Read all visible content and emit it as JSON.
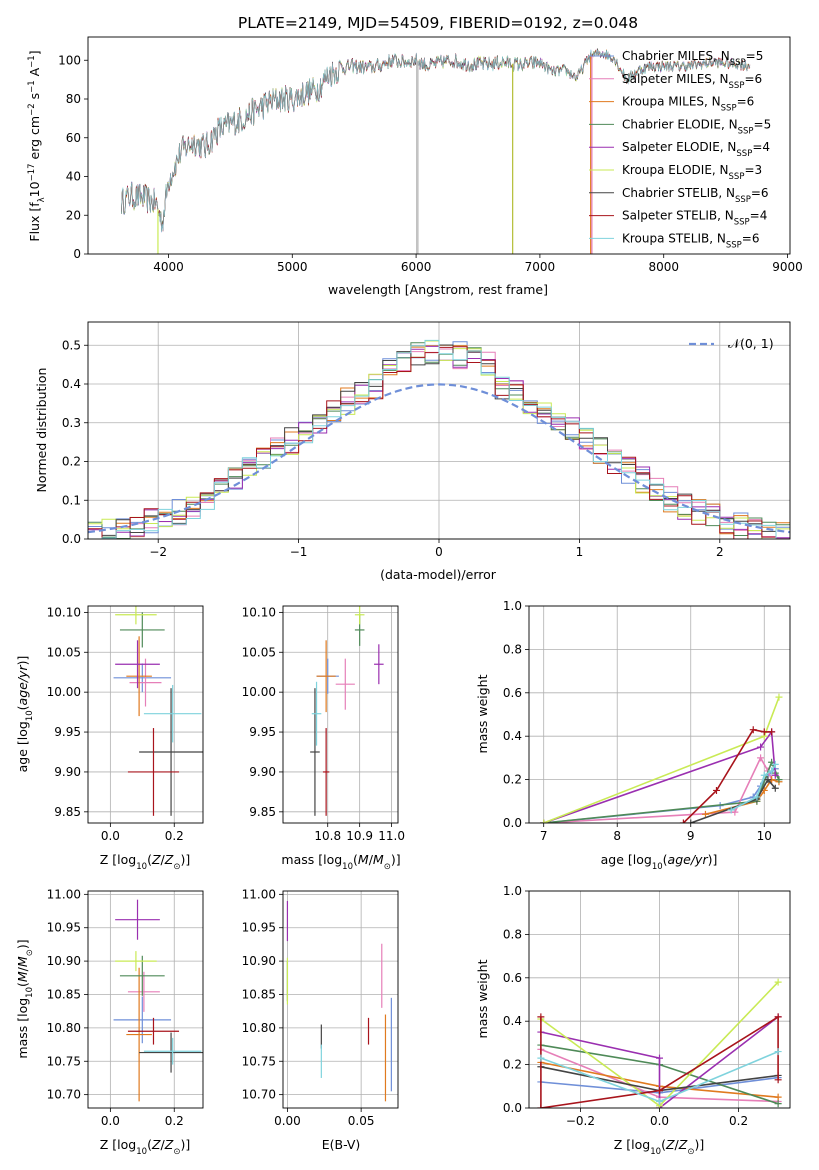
{
  "figure": {
    "title": "PLATE=2149, MJD=54509, FIBERID=0192, z=0.048"
  },
  "palette": {
    "Chabrier MILES": "#6f8fd8",
    "Salpeter MILES": "#e67fb8",
    "Kroupa MILES": "#e07a1f",
    "Chabrier ELODIE": "#4f8a58",
    "Salpeter ELODIE": "#9a2fb0",
    "Kroupa ELODIE": "#c9ea55",
    "Chabrier STELIB": "#444444",
    "Salpeter STELIB": "#a8141c",
    "Kroupa STELIB": "#7fd3dd"
  },
  "chart_data": [
    {
      "id": "spectrum",
      "type": "line",
      "title": "PLATE=2149, MJD=54509, FIBERID=0192, z=0.048",
      "xlabel": "wavelength [Angstrom, rest frame]",
      "ylabel": "Flux [f_λ 10^-17 erg cm^-2 s^-1 A^-1]",
      "xlim": [
        3350,
        9020
      ],
      "ylim": [
        0,
        112
      ],
      "xticks": [
        4000,
        5000,
        6000,
        7000,
        8000,
        9000
      ],
      "yticks": [
        0,
        20,
        40,
        60,
        80,
        100
      ],
      "legend_position": "right",
      "continuum_x": [
        3620,
        3700,
        3800,
        3900,
        3950,
        4000,
        4100,
        4200,
        4300,
        4400,
        4500,
        4600,
        4700,
        4800,
        4900,
        5000,
        5100,
        5200,
        5300,
        5400,
        5500,
        5600,
        5700,
        5800,
        5900,
        6000,
        6100,
        6200,
        6300,
        6400,
        6500,
        6600,
        6700,
        6800,
        6900,
        7000,
        7100,
        7200,
        7300,
        7400,
        7500,
        7600,
        7700,
        7800,
        7900,
        8000,
        8200,
        8400,
        8600,
        8700
      ],
      "continuum_y": [
        27,
        30,
        29,
        26,
        16,
        38,
        53,
        58,
        55,
        64,
        67,
        70,
        74,
        78,
        80,
        80,
        83,
        85,
        93,
        96,
        97,
        96,
        97,
        100,
        99,
        100,
        97,
        99,
        100,
        98,
        98,
        98,
        99,
        98,
        98,
        99,
        94,
        95,
        91,
        102,
        104,
        101,
        90,
        95,
        97,
        97,
        97,
        99,
        98,
        97
      ],
      "series": [
        {
          "name": "Chabrier MILES, N_SSP=5",
          "label_base": "Chabrier MILES, N",
          "label_sub": "SSP",
          "label_tail": "=5"
        },
        {
          "name": "Salpeter MILES, N_SSP=6",
          "label_base": "Salpeter MILES, N",
          "label_sub": "SSP",
          "label_tail": "=6"
        },
        {
          "name": "Kroupa MILES, N_SSP=6",
          "label_base": "Kroupa MILES, N",
          "label_sub": "SSP",
          "label_tail": "=6"
        },
        {
          "name": "Chabrier ELODIE, N_SSP=5",
          "label_base": "Chabrier ELODIE, N",
          "label_sub": "SSP",
          "label_tail": "=5"
        },
        {
          "name": "Salpeter ELODIE, N_SSP=4",
          "label_base": "Salpeter ELODIE, N",
          "label_sub": "SSP",
          "label_tail": "=4"
        },
        {
          "name": "Kroupa ELODIE, N_SSP=3",
          "label_base": "Kroupa ELODIE, N",
          "label_sub": "SSP",
          "label_tail": "=3"
        },
        {
          "name": "Chabrier STELIB, N_SSP=6",
          "label_base": "Chabrier STELIB, N",
          "label_sub": "SSP",
          "label_tail": "=6"
        },
        {
          "name": "Salpeter STELIB, N_SSP=4",
          "label_base": "Salpeter STELIB, N",
          "label_sub": "SSP",
          "label_tail": "=4"
        },
        {
          "name": "Kroupa STELIB, N_SSP=6",
          "label_base": "Kroupa STELIB, N",
          "label_sub": "SSP",
          "label_tail": "=6"
        }
      ]
    },
    {
      "id": "residuals",
      "type": "histogram",
      "xlabel": "(data-model)/error",
      "ylabel": "Normed distribution",
      "xlim": [
        -2.5,
        2.5
      ],
      "ylim": [
        0,
        0.56
      ],
      "xticks": [
        -2,
        -1,
        0,
        1,
        2
      ],
      "yticks": [
        0.0,
        0.1,
        0.2,
        0.3,
        0.4,
        0.5
      ],
      "bin_width": 0.1,
      "bin_start": -2.5,
      "legend": "𝒩(0, 1)",
      "reference_curve": "standard normal, dashed"
    },
    {
      "id": "age-vs-Z",
      "type": "scatter-errorbar",
      "xlabel": "Z [log10(Z/Z⊙)]",
      "ylabel": "age [log10(age/yr)]",
      "xlim": [
        -0.07,
        0.29
      ],
      "ylim": [
        9.836,
        10.108
      ],
      "xticks": [
        0.0,
        0.2
      ],
      "yticks": [
        9.85,
        9.9,
        9.95,
        10.0,
        10.05,
        10.1
      ],
      "points": [
        {
          "model": "Chabrier MILES",
          "x": 0.1,
          "y": 10.018,
          "xerr": 0.09,
          "yerr": 0.018
        },
        {
          "model": "Salpeter MILES",
          "x": 0.11,
          "y": 10.012,
          "xerr": 0.05,
          "yerr": 0.03
        },
        {
          "model": "Kroupa MILES",
          "x": 0.09,
          "y": 10.02,
          "xerr": 0.04,
          "yerr": 0.05
        },
        {
          "model": "Chabrier ELODIE",
          "x": 0.1,
          "y": 10.078,
          "xerr": 0.07,
          "yerr": 0.022
        },
        {
          "model": "Salpeter ELODIE",
          "x": 0.085,
          "y": 10.035,
          "xerr": 0.07,
          "yerr": 0.03
        },
        {
          "model": "Kroupa ELODIE",
          "x": 0.08,
          "y": 10.097,
          "xerr": 0.065,
          "yerr": 0.012
        },
        {
          "model": "Chabrier STELIB",
          "x": 0.19,
          "y": 9.925,
          "xerr": 0.1,
          "yerr": 0.08
        },
        {
          "model": "Salpeter STELIB",
          "x": 0.135,
          "y": 9.9,
          "xerr": 0.08,
          "yerr": 0.055
        },
        {
          "model": "Kroupa STELIB",
          "x": 0.195,
          "y": 9.973,
          "xerr": 0.09,
          "yerr": 0.036
        }
      ]
    },
    {
      "id": "age-vs-mass",
      "type": "scatter-errorbar",
      "xlabel": "mass [log10(M/M⊙)]",
      "xlim": [
        10.66,
        11.02
      ],
      "ylim": [
        9.836,
        10.108
      ],
      "xticks": [
        10.8,
        10.9,
        11.0
      ],
      "yticks": [
        9.85,
        9.9,
        9.95,
        10.0,
        10.05,
        10.1
      ],
      "points": [
        {
          "model": "Chabrier MILES",
          "x": 10.8,
          "y": 10.02,
          "xerr": 0.035,
          "yerr": 0.022
        },
        {
          "model": "Salpeter MILES",
          "x": 10.855,
          "y": 10.01,
          "xerr": 0.03,
          "yerr": 0.032
        },
        {
          "model": "Kroupa MILES",
          "x": 10.795,
          "y": 10.02,
          "xerr": 0.03,
          "yerr": 0.045
        },
        {
          "model": "Chabrier ELODIE",
          "x": 10.9,
          "y": 10.078,
          "xerr": 0.015,
          "yerr": 0.02
        },
        {
          "model": "Salpeter ELODIE",
          "x": 10.96,
          "y": 10.035,
          "xerr": 0.015,
          "yerr": 0.025
        },
        {
          "model": "Kroupa ELODIE",
          "x": 10.9,
          "y": 10.097,
          "xerr": 0.015,
          "yerr": 0.012
        },
        {
          "model": "Chabrier STELIB",
          "x": 10.76,
          "y": 9.925,
          "xerr": 0.015,
          "yerr": 0.08
        },
        {
          "model": "Salpeter STELIB",
          "x": 10.795,
          "y": 9.9,
          "xerr": 0.01,
          "yerr": 0.055
        },
        {
          "model": "Kroupa STELIB",
          "x": 10.765,
          "y": 9.973,
          "xerr": 0.015,
          "yerr": 0.04
        }
      ]
    },
    {
      "id": "mass-weight-vs-age",
      "type": "line",
      "xlabel": "age [log10(age/yr)]",
      "ylabel": "mass weight",
      "xlim": [
        6.8,
        10.35
      ],
      "ylim": [
        0,
        1.0
      ],
      "xticks": [
        7,
        8,
        9,
        10
      ],
      "yticks": [
        0.0,
        0.2,
        0.4,
        0.6,
        0.8,
        1.0
      ],
      "series": [
        {
          "model": "Chabrier MILES",
          "x": [
            7.0,
            9.4,
            9.85,
            9.95,
            10.05,
            10.15
          ],
          "y": [
            0.0,
            0.08,
            0.12,
            0.17,
            0.22,
            0.25
          ]
        },
        {
          "model": "Salpeter MILES",
          "x": [
            7.0,
            9.6,
            9.95,
            10.05,
            10.1
          ],
          "y": [
            0.0,
            0.05,
            0.3,
            0.24,
            0.2
          ]
        },
        {
          "model": "Kroupa MILES",
          "x": [
            9.2,
            9.9,
            10.0,
            10.1,
            10.2
          ],
          "y": [
            0.04,
            0.1,
            0.15,
            0.2,
            0.19
          ]
        },
        {
          "model": "Chabrier ELODIE",
          "x": [
            7.0,
            9.9,
            10.1,
            10.2,
            10.15
          ],
          "y": [
            0.0,
            0.1,
            0.28,
            0.2,
            0.23
          ]
        },
        {
          "model": "Salpeter ELODIE",
          "x": [
            7.0,
            9.95,
            10.1,
            10.15
          ],
          "y": [
            0.0,
            0.35,
            0.42,
            0.22
          ]
        },
        {
          "model": "Kroupa ELODIE",
          "x": [
            7.0,
            10.0,
            10.2
          ],
          "y": [
            0.0,
            0.4,
            0.58
          ]
        },
        {
          "model": "Chabrier STELIB",
          "x": [
            9.0,
            9.9,
            10.05,
            10.15
          ],
          "y": [
            0.0,
            0.11,
            0.2,
            0.16
          ]
        },
        {
          "model": "Salpeter STELIB",
          "x": [
            8.9,
            9.35,
            9.85,
            10.0,
            10.1
          ],
          "y": [
            0.0,
            0.15,
            0.43,
            0.42,
            0.42
          ]
        },
        {
          "model": "Kroupa STELIB",
          "x": [
            9.55,
            9.9,
            10.0,
            10.1,
            10.15
          ],
          "y": [
            0.06,
            0.12,
            0.22,
            0.24,
            0.27
          ]
        }
      ]
    },
    {
      "id": "mass-vs-Z",
      "type": "scatter-errorbar",
      "xlabel": "Z [log10(Z/Z⊙)]",
      "ylabel": "mass [log10(M/M⊙)]",
      "xlim": [
        -0.07,
        0.29
      ],
      "ylim": [
        10.68,
        11.005
      ],
      "xticks": [
        0.0,
        0.2
      ],
      "yticks": [
        10.7,
        10.75,
        10.8,
        10.85,
        10.9,
        10.95,
        11.0
      ],
      "points": [
        {
          "model": "Chabrier MILES",
          "x": 0.1,
          "y": 10.812,
          "xerr": 0.09,
          "yerr": 0.035
        },
        {
          "model": "Salpeter MILES",
          "x": 0.105,
          "y": 10.854,
          "xerr": 0.05,
          "yerr": 0.03
        },
        {
          "model": "Kroupa MILES",
          "x": 0.09,
          "y": 10.79,
          "xerr": 0.04,
          "yerr": 0.1
        },
        {
          "model": "Chabrier ELODIE",
          "x": 0.1,
          "y": 10.878,
          "xerr": 0.07,
          "yerr": 0.03
        },
        {
          "model": "Salpeter ELODIE",
          "x": 0.085,
          "y": 10.962,
          "xerr": 0.07,
          "yerr": 0.03
        },
        {
          "model": "Kroupa ELODIE",
          "x": 0.08,
          "y": 10.9,
          "xerr": 0.065,
          "yerr": 0.015
        },
        {
          "model": "Chabrier STELIB",
          "x": 0.19,
          "y": 10.763,
          "xerr": 0.1,
          "yerr": 0.03
        },
        {
          "model": "Salpeter STELIB",
          "x": 0.135,
          "y": 10.795,
          "xerr": 0.08,
          "yerr": 0.02
        },
        {
          "model": "Kroupa STELIB",
          "x": 0.195,
          "y": 10.765,
          "xerr": 0.09,
          "yerr": 0.02
        }
      ]
    },
    {
      "id": "mass-vs-ebv",
      "type": "scatter-errorbar",
      "xlabel": "E(B-V)",
      "xlim": [
        -0.003,
        0.075
      ],
      "ylim": [
        10.68,
        11.005
      ],
      "xticks": [
        0.0,
        0.05
      ],
      "yticks": [
        10.7,
        10.75,
        10.8,
        10.85,
        10.9,
        10.95,
        11.0
      ],
      "points": [
        {
          "model": "Chabrier MILES",
          "x": 0.0705,
          "y": 10.775,
          "xerr": 0,
          "yerr": 0.07
        },
        {
          "model": "Salpeter MILES",
          "x": 0.064,
          "y": 10.878,
          "xerr": 0,
          "yerr": 0.048
        },
        {
          "model": "Kroupa MILES",
          "x": 0.0665,
          "y": 10.755,
          "xerr": 0,
          "yerr": 0.065
        },
        {
          "model": "Chabrier ELODIE",
          "x": 0.0,
          "y": 10.87,
          "xerr": 0,
          "yerr": 0.03
        },
        {
          "model": "Salpeter ELODIE",
          "x": 0.0,
          "y": 10.96,
          "xerr": 0,
          "yerr": 0.03
        },
        {
          "model": "Kroupa ELODIE",
          "x": 0.0,
          "y": 10.87,
          "xerr": 0,
          "yerr": 0.035
        },
        {
          "model": "Chabrier STELIB",
          "x": 0.023,
          "y": 10.787,
          "xerr": 0,
          "yerr": 0.018
        },
        {
          "model": "Salpeter STELIB",
          "x": 0.055,
          "y": 10.795,
          "xerr": 0,
          "yerr": 0.02
        },
        {
          "model": "Kroupa STELIB",
          "x": 0.023,
          "y": 10.75,
          "xerr": 0,
          "yerr": 0.025
        }
      ]
    },
    {
      "id": "mass-weight-vs-Z",
      "type": "line",
      "xlabel": "Z [log10(Z/Z⊙)]",
      "ylabel": "mass weight",
      "xlim": [
        -0.33,
        0.33
      ],
      "ylim": [
        0,
        1.0
      ],
      "xticks": [
        -0.2,
        0.0,
        0.2
      ],
      "yticks": [
        0.0,
        0.2,
        0.4,
        0.6,
        0.8,
        1.0
      ],
      "series": [
        {
          "model": "Chabrier MILES",
          "x": [
            -0.3,
            0.0,
            0.3
          ],
          "y": [
            0.12,
            0.07,
            0.14
          ]
        },
        {
          "model": "Salpeter MILES",
          "x": [
            -0.3,
            0.0,
            0.3
          ],
          "y": [
            0.27,
            0.05,
            0.03
          ]
        },
        {
          "model": "Kroupa MILES",
          "x": [
            -0.3,
            0.0,
            0.3
          ],
          "y": [
            0.21,
            0.1,
            0.05
          ]
        },
        {
          "model": "Chabrier ELODIE",
          "x": [
            -0.3,
            0.0,
            0.3
          ],
          "y": [
            0.29,
            0.2,
            0.02
          ]
        },
        {
          "model": "Salpeter ELODIE",
          "x": [
            -0.3,
            0.0,
            0.0,
            0.3
          ],
          "y": [
            0.35,
            0.23,
            0.0,
            0.42
          ]
        },
        {
          "model": "Kroupa ELODIE",
          "x": [
            -0.3,
            0.0,
            0.3
          ],
          "y": [
            0.41,
            0.01,
            0.58
          ]
        },
        {
          "model": "Chabrier STELIB",
          "x": [
            -0.3,
            0.0,
            0.3
          ],
          "y": [
            0.19,
            0.08,
            0.15
          ]
        },
        {
          "model": "Salpeter STELIB",
          "x": [
            -0.3,
            -0.3,
            0.0,
            0.3,
            0.3
          ],
          "y": [
            0.42,
            0.0,
            0.08,
            0.42,
            0.13
          ]
        },
        {
          "model": "Kroupa STELIB",
          "x": [
            -0.3,
            0.0,
            0.3
          ],
          "y": [
            0.23,
            0.03,
            0.26
          ]
        }
      ]
    }
  ]
}
